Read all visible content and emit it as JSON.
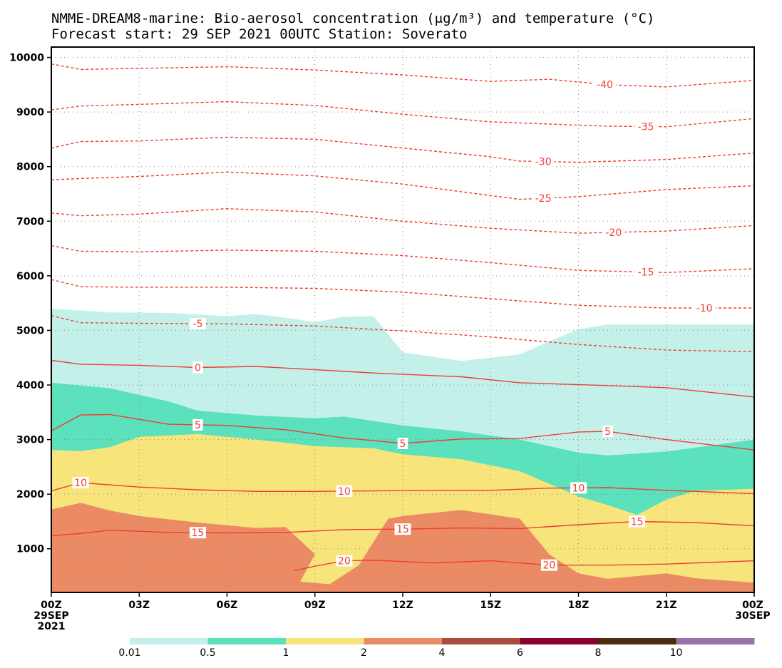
{
  "chart_data": {
    "type": "area",
    "title_line1": "NMME-DREAM8-marine: Bio-aerosol concentration (μg/m³) and temperature (°C)",
    "title_line2": "Forecast start: 29 SEP 2021 00UTC     Station: Soverato",
    "x_unit": "hours since forecast start",
    "xlim": [
      0,
      24
    ],
    "ylim": [
      200,
      10100
    ],
    "x_ticks": [
      {
        "x": 0,
        "label": "00Z",
        "sub1": "29SEP",
        "sub2": "2021"
      },
      {
        "x": 3,
        "label": "03Z"
      },
      {
        "x": 6,
        "label": "06Z"
      },
      {
        "x": 9,
        "label": "09Z"
      },
      {
        "x": 12,
        "label": "12Z"
      },
      {
        "x": 15,
        "label": "15Z"
      },
      {
        "x": 18,
        "label": "18Z"
      },
      {
        "x": 21,
        "label": "21Z"
      },
      {
        "x": 24,
        "label": "00Z",
        "sub1": "30SEP"
      }
    ],
    "y_ticks": [
      1000,
      2000,
      3000,
      4000,
      5000,
      6000,
      7000,
      8000,
      9000,
      10000
    ],
    "grid": "dotted",
    "concentration_levels": [
      {
        "label": "0.01",
        "color": "#c3f1ea"
      },
      {
        "label": "0.5",
        "color": "#5be1bb"
      },
      {
        "label": "1",
        "color": "#f7e57b"
      },
      {
        "label": "2",
        "color": "#ea8b66"
      },
      {
        "label": "4",
        "color": "#aa4b40"
      },
      {
        "label": "6",
        "color": "#8c0030"
      },
      {
        "label": "8",
        "color": "#4f2b10"
      },
      {
        "label": "10",
        "color": "#9a71a8"
      }
    ],
    "concentration_regions": [
      {
        "level": "0.01",
        "color": "#c3f1ea",
        "top": [
          [
            0,
            5400
          ],
          [
            2,
            5330
          ],
          [
            4,
            5320
          ],
          [
            6,
            5260
          ],
          [
            7,
            5300
          ],
          [
            8,
            5230
          ],
          [
            9,
            5150
          ],
          [
            10,
            5250
          ],
          [
            11,
            5260
          ],
          [
            12,
            4600
          ],
          [
            14,
            4440
          ],
          [
            16,
            4560
          ],
          [
            17,
            4800
          ],
          [
            18,
            5020
          ],
          [
            19,
            5110
          ],
          [
            21,
            5110
          ],
          [
            24,
            5110
          ]
        ]
      },
      {
        "level": "0.5",
        "color": "#5be1bb",
        "top": [
          [
            0,
            4040
          ],
          [
            2,
            3940
          ],
          [
            4,
            3700
          ],
          [
            5,
            3530
          ],
          [
            7,
            3440
          ],
          [
            9,
            3390
          ],
          [
            10,
            3420
          ],
          [
            12,
            3260
          ],
          [
            14,
            3150
          ],
          [
            16,
            3000
          ],
          [
            18,
            2760
          ],
          [
            19,
            2710
          ],
          [
            21,
            2780
          ],
          [
            24,
            3000
          ]
        ]
      },
      {
        "level": "1",
        "color": "#f7e57b",
        "top": [
          [
            0,
            2810
          ],
          [
            1,
            2790
          ],
          [
            2,
            2860
          ],
          [
            3,
            3050
          ],
          [
            5,
            3100
          ],
          [
            7,
            3000
          ],
          [
            9,
            2880
          ],
          [
            11,
            2840
          ],
          [
            12,
            2730
          ],
          [
            14,
            2640
          ],
          [
            16,
            2420
          ],
          [
            18,
            1960
          ],
          [
            19,
            1800
          ],
          [
            20,
            1620
          ],
          [
            21,
            1900
          ],
          [
            22,
            2060
          ],
          [
            24,
            2100
          ]
        ]
      },
      {
        "level": "2",
        "color": "#ea8b66",
        "top": [
          [
            0,
            1720
          ],
          [
            1,
            1840
          ],
          [
            2,
            1700
          ],
          [
            3,
            1600
          ],
          [
            5,
            1480
          ],
          [
            7,
            1380
          ],
          [
            8,
            1400
          ],
          [
            9,
            900
          ],
          [
            8.5,
            400
          ],
          [
            9.5,
            350
          ],
          [
            10.5,
            700
          ],
          [
            11.5,
            1550
          ],
          [
            12,
            1600
          ],
          [
            14,
            1710
          ],
          [
            16,
            1550
          ],
          [
            17,
            900
          ],
          [
            18,
            550
          ],
          [
            19,
            450
          ],
          [
            21,
            550
          ],
          [
            22,
            460
          ],
          [
            24,
            380
          ]
        ]
      }
    ],
    "temperature_isotherms": [
      {
        "label": "-40",
        "points": [
          [
            0,
            9880
          ],
          [
            1,
            9780
          ],
          [
            3,
            9800
          ],
          [
            6,
            9830
          ],
          [
            9,
            9770
          ],
          [
            12,
            9680
          ],
          [
            15,
            9560
          ],
          [
            17,
            9600
          ],
          [
            19,
            9500
          ],
          [
            21,
            9460
          ],
          [
            24,
            9580
          ]
        ],
        "label_at": 18.9
      },
      {
        "label": "-35",
        "points": [
          [
            0,
            9040
          ],
          [
            1,
            9110
          ],
          [
            3,
            9140
          ],
          [
            6,
            9190
          ],
          [
            9,
            9120
          ],
          [
            12,
            8960
          ],
          [
            15,
            8820
          ],
          [
            17,
            8780
          ],
          [
            19,
            8740
          ],
          [
            21,
            8730
          ],
          [
            24,
            8880
          ]
        ],
        "label_at": 20.3
      },
      {
        "label": "-30",
        "points": [
          [
            0,
            8340
          ],
          [
            1,
            8460
          ],
          [
            3,
            8470
          ],
          [
            6,
            8540
          ],
          [
            9,
            8500
          ],
          [
            12,
            8340
          ],
          [
            15,
            8180
          ],
          [
            16,
            8100
          ],
          [
            18,
            8080
          ],
          [
            21,
            8130
          ],
          [
            24,
            8250
          ]
        ],
        "label_at": 16.8
      },
      {
        "label": "-25",
        "points": [
          [
            0,
            7760
          ],
          [
            1,
            7780
          ],
          [
            3,
            7820
          ],
          [
            6,
            7900
          ],
          [
            9,
            7830
          ],
          [
            12,
            7680
          ],
          [
            15,
            7470
          ],
          [
            16,
            7400
          ],
          [
            18,
            7450
          ],
          [
            21,
            7580
          ],
          [
            24,
            7650
          ]
        ],
        "label_at": 16.8
      },
      {
        "label": "-20",
        "points": [
          [
            0,
            7150
          ],
          [
            1,
            7100
          ],
          [
            3,
            7130
          ],
          [
            6,
            7230
          ],
          [
            9,
            7170
          ],
          [
            12,
            7000
          ],
          [
            15,
            6870
          ],
          [
            18,
            6780
          ],
          [
            21,
            6820
          ],
          [
            24,
            6920
          ]
        ],
        "label_at": 19.2
      },
      {
        "label": "-15",
        "points": [
          [
            0,
            6550
          ],
          [
            1,
            6450
          ],
          [
            3,
            6440
          ],
          [
            6,
            6470
          ],
          [
            9,
            6450
          ],
          [
            12,
            6370
          ],
          [
            15,
            6240
          ],
          [
            18,
            6100
          ],
          [
            21,
            6060
          ],
          [
            24,
            6130
          ]
        ],
        "label_at": 20.3
      },
      {
        "label": "-10",
        "points": [
          [
            0,
            5930
          ],
          [
            1,
            5800
          ],
          [
            3,
            5790
          ],
          [
            6,
            5790
          ],
          [
            9,
            5770
          ],
          [
            12,
            5700
          ],
          [
            15,
            5580
          ],
          [
            18,
            5460
          ],
          [
            21,
            5410
          ],
          [
            24,
            5410
          ]
        ],
        "label_at": 22.3
      },
      {
        "label": "-5",
        "points": [
          [
            0,
            5270
          ],
          [
            1,
            5140
          ],
          [
            3,
            5130
          ],
          [
            6,
            5120
          ],
          [
            9,
            5080
          ],
          [
            12,
            4990
          ],
          [
            15,
            4880
          ],
          [
            18,
            4740
          ],
          [
            21,
            4640
          ],
          [
            24,
            4610
          ]
        ],
        "label_at": 5
      },
      {
        "label": "0",
        "points": [
          [
            0,
            4450
          ],
          [
            1,
            4380
          ],
          [
            3,
            4360
          ],
          [
            5,
            4320
          ],
          [
            7,
            4340
          ],
          [
            9,
            4280
          ],
          [
            11,
            4220
          ],
          [
            14,
            4150
          ],
          [
            16,
            4040
          ],
          [
            19,
            3990
          ],
          [
            21,
            3950
          ],
          [
            24,
            3780
          ]
        ],
        "label_at": 5
      },
      {
        "label": "5",
        "points": [
          [
            0,
            3160
          ],
          [
            1,
            3450
          ],
          [
            2,
            3460
          ],
          [
            4,
            3280
          ],
          [
            6,
            3260
          ],
          [
            8,
            3180
          ],
          [
            10,
            3030
          ],
          [
            12,
            2930
          ],
          [
            14,
            3010
          ],
          [
            16,
            3020
          ],
          [
            18,
            3140
          ],
          [
            19,
            3150
          ],
          [
            21,
            3000
          ],
          [
            24,
            2810
          ]
        ],
        "label_at": 5
      },
      {
        "label": "5",
        "points": [],
        "label_at": 12
      },
      {
        "label": "5",
        "points": [],
        "label_at": 19
      },
      {
        "label": "10",
        "points": [
          [
            0,
            2060
          ],
          [
            1,
            2210
          ],
          [
            3,
            2130
          ],
          [
            5,
            2080
          ],
          [
            7,
            2050
          ],
          [
            9,
            2050
          ],
          [
            11,
            2060
          ],
          [
            13,
            2070
          ],
          [
            15,
            2070
          ],
          [
            17,
            2110
          ],
          [
            19,
            2120
          ],
          [
            21,
            2070
          ],
          [
            24,
            2010
          ]
        ],
        "label_at": 1
      },
      {
        "label": "10",
        "points": [],
        "label_at": 10
      },
      {
        "label": "10",
        "points": [],
        "label_at": 18
      },
      {
        "label": "15",
        "points": [
          [
            0,
            1240
          ],
          [
            1,
            1280
          ],
          [
            2,
            1340
          ],
          [
            4,
            1300
          ],
          [
            6,
            1290
          ],
          [
            8,
            1300
          ],
          [
            10,
            1350
          ],
          [
            12,
            1360
          ],
          [
            14,
            1380
          ],
          [
            16,
            1370
          ],
          [
            18,
            1440
          ],
          [
            20,
            1500
          ],
          [
            22,
            1480
          ],
          [
            24,
            1420
          ]
        ],
        "label_at": 5
      },
      {
        "label": "15",
        "points": [],
        "label_at": 12
      },
      {
        "label": "15",
        "points": [],
        "label_at": 20
      },
      {
        "label": "20",
        "points": [
          [
            8.3,
            600
          ],
          [
            9,
            680
          ],
          [
            10,
            780
          ],
          [
            11,
            790
          ],
          [
            13,
            740
          ],
          [
            15,
            780
          ],
          [
            17,
            700
          ],
          [
            19,
            700
          ],
          [
            21,
            720
          ],
          [
            24,
            780
          ]
        ],
        "label_at": 10
      },
      {
        "label": "20",
        "points": [],
        "label_at": 17
      }
    ]
  }
}
